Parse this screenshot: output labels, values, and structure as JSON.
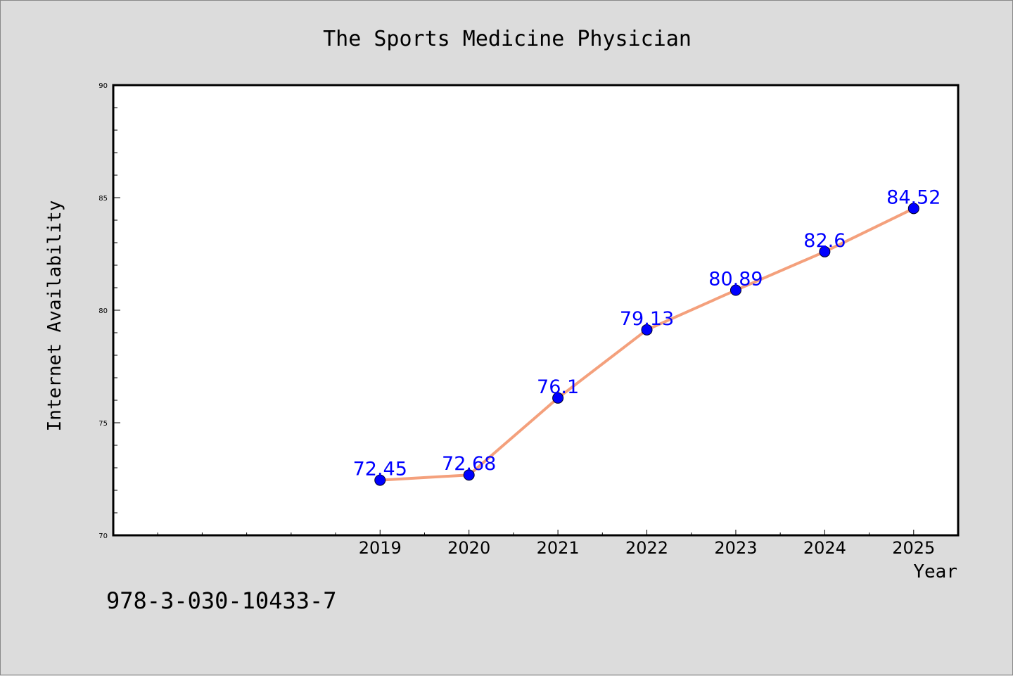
{
  "chart_data": {
    "type": "line",
    "title": "The Sports Medicine Physician",
    "xlabel": "Year",
    "ylabel": "Internet Availability",
    "x": [
      2019,
      2020,
      2021,
      2022,
      2023,
      2024,
      2025
    ],
    "xlim": [
      2016,
      2025.5
    ],
    "ylim": [
      70,
      90
    ],
    "yticks": [
      70,
      75,
      80,
      85,
      90
    ],
    "series": [
      {
        "values": [
          72.45,
          72.68,
          76.1,
          79.13,
          80.89,
          82.6,
          84.52
        ],
        "labels": [
          "72.45",
          "72.68",
          "76.1",
          "79.13",
          "80.89",
          "82.6",
          "84.52"
        ]
      }
    ],
    "grid": false,
    "colors": {
      "line": "#f4a07c",
      "marker": "#0000ff",
      "label": "#0000ff"
    }
  },
  "footer": {
    "isbn": "978-3-030-10433-7"
  }
}
